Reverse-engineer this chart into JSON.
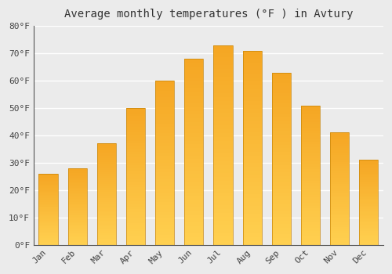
{
  "title": "Average monthly temperatures (°F ) in Avtury",
  "months": [
    "Jan",
    "Feb",
    "Mar",
    "Apr",
    "May",
    "Jun",
    "Jul",
    "Aug",
    "Sep",
    "Oct",
    "Nov",
    "Dec"
  ],
  "values": [
    26,
    28,
    37,
    50,
    60,
    68,
    73,
    71,
    63,
    51,
    41,
    31
  ],
  "bar_color_top": "#F5A623",
  "bar_color_bottom": "#FFD050",
  "bar_edge_color": "#C8860A",
  "ylim": [
    0,
    80
  ],
  "yticks": [
    0,
    10,
    20,
    30,
    40,
    50,
    60,
    70,
    80
  ],
  "ytick_labels": [
    "0°F",
    "10°F",
    "20°F",
    "30°F",
    "40°F",
    "50°F",
    "60°F",
    "70°F",
    "80°F"
  ],
  "background_color": "#ebebeb",
  "plot_bg_color": "#ebebeb",
  "grid_color": "#ffffff",
  "title_fontsize": 10,
  "tick_fontsize": 8,
  "bar_width": 0.65
}
